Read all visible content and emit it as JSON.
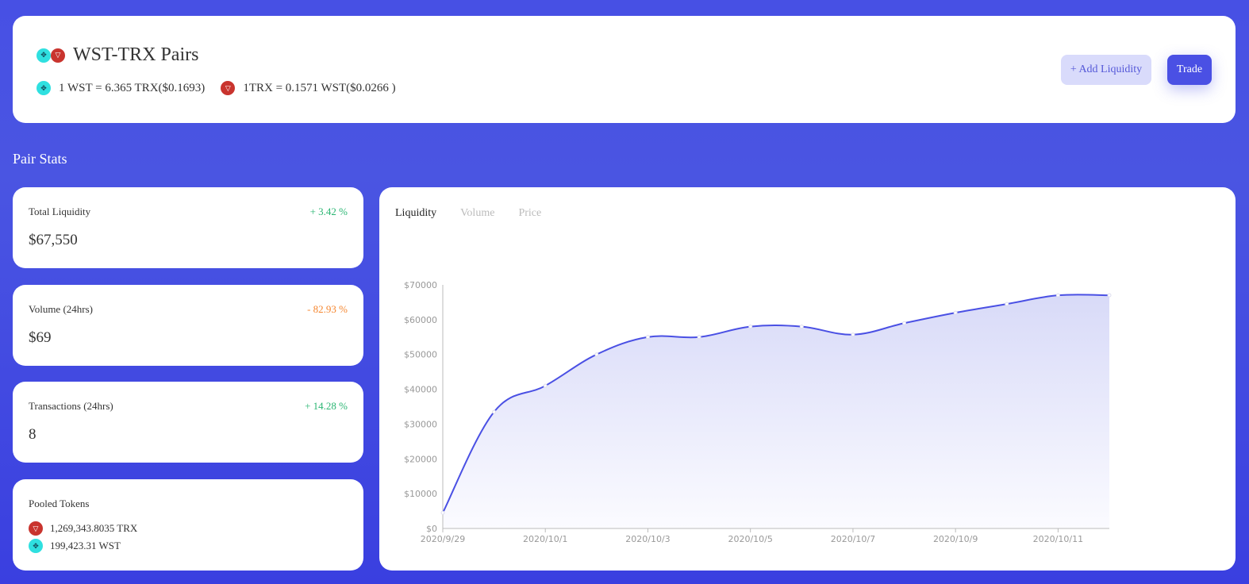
{
  "header": {
    "title": "WST-TRX Pairs",
    "rate_wst": "1 WST = 6.365 TRX($0.1693)",
    "rate_trx": "1TRX = 0.1571 WST($0.0266 )",
    "add_liquidity": "+ Add Liquidity",
    "trade": "Trade"
  },
  "section_title": "Pair Stats",
  "stats": [
    {
      "label": "Total Liquidity",
      "change": "+ 3.42 %",
      "value": "$67,550",
      "trend": "up"
    },
    {
      "label": "Volume (24hrs)",
      "change": "- 82.93 %",
      "value": "$69",
      "trend": "down"
    },
    {
      "label": "Transactions (24hrs)",
      "change": "+ 14.28 %",
      "value": "8",
      "trend": "up"
    }
  ],
  "pooled": {
    "label": "Pooled Tokens",
    "trx": "1,269,343.8035 TRX",
    "wst": "199,423.31 WST"
  },
  "colors": {
    "accent": "#4a50e4",
    "up": "#2bb673",
    "down": "#f5862f"
  },
  "chart_tabs": [
    "Liquidity",
    "Volume",
    "Price"
  ],
  "chart_data": {
    "type": "area",
    "x": [
      "2020/9/29",
      "2020/9/30",
      "2020/10/1",
      "2020/10/2",
      "2020/10/3",
      "2020/10/4",
      "2020/10/5",
      "2020/10/6",
      "2020/10/7",
      "2020/10/8",
      "2020/10/9",
      "2020/10/10",
      "2020/10/11",
      "2020/10/12"
    ],
    "xticks": [
      "2020/9/29",
      "2020/10/1",
      "2020/10/3",
      "2020/10/5",
      "2020/10/7",
      "2020/10/9",
      "2020/10/11"
    ],
    "values": [
      4500,
      33500,
      41000,
      50000,
      55000,
      55000,
      58000,
      58000,
      55700,
      59000,
      62000,
      64500,
      67000,
      67000
    ],
    "yticks": [
      "$0",
      "$10000",
      "$20000",
      "$30000",
      "$40000",
      "$50000",
      "$60000",
      "$70000"
    ],
    "ylim": [
      0,
      70000
    ],
    "grid": false
  }
}
